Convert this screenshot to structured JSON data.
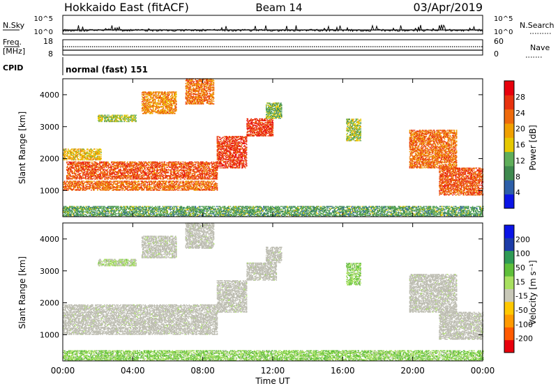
{
  "header": {
    "title": "Hokkaido East (fitACF)",
    "beam": "Beam 14",
    "date": "03/Apr/2019"
  },
  "noise_panel": {
    "left_label": "N.Sky",
    "right_label": "N.Search",
    "left_ticks": [
      "10^5",
      "10^0"
    ],
    "right_ticks": [
      "10^5",
      "10^0"
    ]
  },
  "freq_panel": {
    "left_label_top": "Freq.",
    "left_label_unit": "[MHz]",
    "left_ticks": [
      "18",
      "8"
    ],
    "right_label": "Nave",
    "right_ticks": [
      "60",
      "0"
    ]
  },
  "cpid_panel": {
    "label": "CPID",
    "mode": "normal (fast) 151"
  },
  "power_panel": {
    "ylabel": "Slant Range [km]",
    "yticks": [
      "4000",
      "3000",
      "2000",
      "1000"
    ],
    "colorbar_label": "Power [dB]",
    "colorbar_ticks": [
      "28",
      "24",
      "20",
      "16",
      "12",
      "8",
      "4"
    ]
  },
  "velocity_panel": {
    "ylabel": "Slant Range [km]",
    "yticks": [
      "4000",
      "3000",
      "2000",
      "1000"
    ],
    "colorbar_label": "Velocity [m s⁻¹]",
    "colorbar_ticks": [
      "200",
      "100",
      "50",
      "15",
      "-15",
      "-50",
      "-100",
      "-200"
    ]
  },
  "x_axis": {
    "ticks": [
      "00:00",
      "04:00",
      "08:00",
      "12:00",
      "16:00",
      "20:00",
      "00:00"
    ],
    "label": "Time UT"
  },
  "colors": {
    "power_scale": [
      "#0a14e6",
      "#2d5fa8",
      "#3f8a4f",
      "#5fae5a",
      "#e6c800",
      "#f0a000",
      "#ee6a0c",
      "#e8320e",
      "#e8000c"
    ],
    "velocity_scale": [
      "#e8000c",
      "#ff5a00",
      "#ff9a00",
      "#ffc800",
      "#c8c8b8",
      "#a8e060",
      "#5fbf3a",
      "#2f9a55",
      "#1c3ca8",
      "#0a14e6"
    ],
    "ground_scatter": "#bdbdb2"
  },
  "chart_data": [
    {
      "type": "heatmap",
      "name": "power",
      "title": "",
      "xlabel": "Time UT",
      "ylabel": "Slant Range [km]",
      "xlim": [
        0,
        24
      ],
      "ylim": [
        180,
        4500
      ],
      "colorbar": {
        "label": "Power [dB]",
        "range": [
          0,
          32
        ]
      },
      "scatter_regions": [
        {
          "t0": 0.0,
          "t1": 8.8,
          "r0": 1000,
          "r1": 1300,
          "level": 24
        },
        {
          "t0": 0.2,
          "t1": 8.8,
          "r0": 1350,
          "r1": 1900,
          "level": 26
        },
        {
          "t0": 0.0,
          "t1": 2.2,
          "r0": 1950,
          "r1": 2300,
          "level": 18
        },
        {
          "t0": 8.8,
          "t1": 10.5,
          "r0": 1700,
          "r1": 2700,
          "level": 28
        },
        {
          "t0": 10.5,
          "t1": 12.0,
          "r0": 2700,
          "r1": 3250,
          "level": 28
        },
        {
          "t0": 11.6,
          "t1": 12.5,
          "r0": 3250,
          "r1": 3750,
          "level": 12
        },
        {
          "t0": 2.0,
          "t1": 4.2,
          "r0": 3150,
          "r1": 3350,
          "level": 14
        },
        {
          "t0": 4.5,
          "t1": 6.5,
          "r0": 3400,
          "r1": 4100,
          "level": 22
        },
        {
          "t0": 7.0,
          "t1": 8.6,
          "r0": 3700,
          "r1": 4500,
          "level": 24
        },
        {
          "t0": 16.2,
          "t1": 17.0,
          "r0": 2550,
          "r1": 3250,
          "level": 14
        },
        {
          "t0": 19.8,
          "t1": 22.5,
          "r0": 1700,
          "r1": 2900,
          "level": 24
        },
        {
          "t0": 21.5,
          "t1": 24.0,
          "r0": 850,
          "r1": 1700,
          "level": 26
        },
        {
          "t0": 0.0,
          "t1": 24.0,
          "r0": 180,
          "r1": 500,
          "level": 10
        }
      ]
    },
    {
      "type": "heatmap",
      "name": "velocity",
      "title": "",
      "xlabel": "Time UT",
      "ylabel": "Slant Range [km]",
      "xlim": [
        0,
        24
      ],
      "ylim": [
        180,
        4500
      ],
      "colorbar": {
        "label": "Velocity [m s⁻¹]",
        "range": [
          -200,
          200
        ]
      },
      "scatter_regions": [
        {
          "t0": 0.0,
          "t1": 8.8,
          "r0": 1000,
          "r1": 1950,
          "velocity": 0
        },
        {
          "t0": 8.8,
          "t1": 10.5,
          "r0": 1700,
          "r1": 2700,
          "velocity": 0
        },
        {
          "t0": 10.5,
          "t1": 12.2,
          "r0": 2700,
          "r1": 3250,
          "velocity": 0
        },
        {
          "t0": 11.6,
          "t1": 12.5,
          "r0": 3250,
          "r1": 3750,
          "velocity": 0
        },
        {
          "t0": 2.0,
          "t1": 4.2,
          "r0": 3150,
          "r1": 3350,
          "velocity": 20
        },
        {
          "t0": 4.5,
          "t1": 6.5,
          "r0": 3400,
          "r1": 4100,
          "velocity": 10
        },
        {
          "t0": 7.0,
          "t1": 8.6,
          "r0": 3700,
          "r1": 4500,
          "velocity": 0
        },
        {
          "t0": 16.2,
          "t1": 17.0,
          "r0": 2550,
          "r1": 3250,
          "velocity": 40
        },
        {
          "t0": 19.8,
          "t1": 22.5,
          "r0": 1700,
          "r1": 2900,
          "velocity": 0
        },
        {
          "t0": 21.5,
          "t1": 24.0,
          "r0": 850,
          "r1": 1700,
          "velocity": 0
        },
        {
          "t0": 0.0,
          "t1": 24.0,
          "r0": 180,
          "r1": 500,
          "velocity": 40
        }
      ]
    }
  ]
}
